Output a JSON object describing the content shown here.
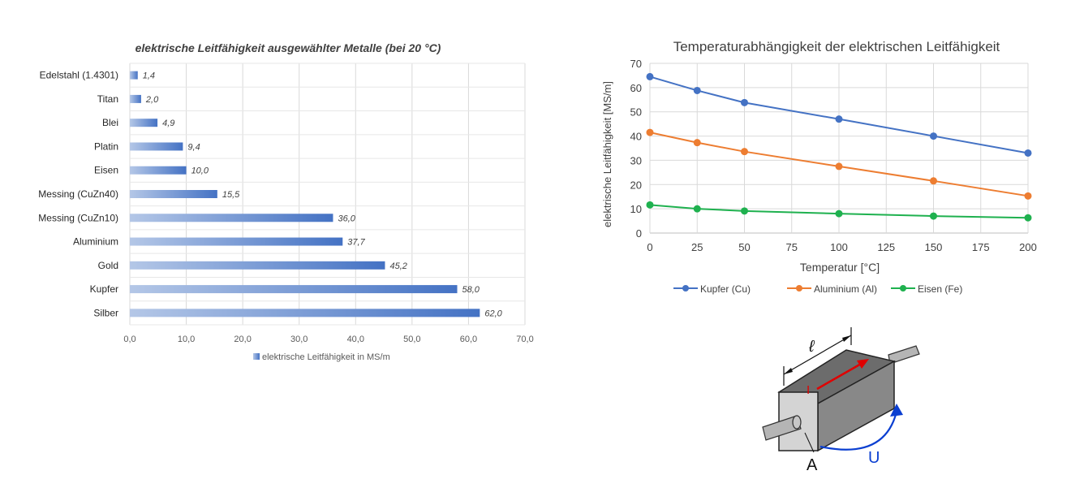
{
  "bar_chart": {
    "title": "elektrische Leitfähigkeit ausgewählter Metalle (bei 20 °C)",
    "legend_label": "elektrische Leitfähigkeit in MS/m",
    "x_ticks": [
      "0,0",
      "10,0",
      "20,0",
      "30,0",
      "40,0",
      "50,0",
      "60,0",
      "70,0"
    ]
  },
  "line_chart": {
    "title": "Temperaturabhängigkeit der elektrischen Leitfähigkeit",
    "xlabel": "Temperatur [°C]",
    "ylabel": "elektrische Leitfähigkeit [MS/m]",
    "x_ticks": [
      "0",
      "25",
      "50",
      "75",
      "100",
      "125",
      "150",
      "175",
      "200"
    ],
    "y_ticks": [
      "0",
      "10",
      "20",
      "30",
      "40",
      "50",
      "60",
      "70"
    ]
  },
  "diagram": {
    "length_label": "ℓ",
    "current_label": "I",
    "area_label": "A",
    "voltage_label": "U"
  },
  "chart_data": [
    {
      "type": "bar",
      "orientation": "horizontal",
      "title": "elektrische Leitfähigkeit ausgewählter Metalle (bei 20 °C)",
      "categories": [
        "Edelstahl (1.4301)",
        "Titan",
        "Blei",
        "Platin",
        "Eisen",
        "Messing (CuZn40)",
        "Messing (CuZn10)",
        "Aluminium",
        "Gold",
        "Kupfer",
        "Silber"
      ],
      "values": [
        1.4,
        2.0,
        4.9,
        9.4,
        10.0,
        15.5,
        36.0,
        37.7,
        45.2,
        58.0,
        62.0
      ],
      "value_labels": [
        "1,4",
        "2,0",
        "4,9",
        "9,4",
        "10,0",
        "15,5",
        "36,0",
        "37,7",
        "45,2",
        "58,0",
        "62,0"
      ],
      "xlim": [
        0,
        70
      ],
      "legend": "elektrische Leitfähigkeit in MS/m",
      "legend_position": "bottom",
      "grid": true
    },
    {
      "type": "line",
      "title": "Temperaturabhängigkeit der elektrischen Leitfähigkeit",
      "xlabel": "Temperatur [°C]",
      "ylabel": "elektrische Leitfähigkeit [MS/m]",
      "xlim": [
        0,
        200
      ],
      "ylim": [
        0,
        70
      ],
      "grid": true,
      "legend_position": "bottom",
      "series": [
        {
          "name": "Kupfer (Cu)",
          "color": "#4472C4",
          "x": [
            0,
            25,
            50,
            100,
            150,
            200
          ],
          "values": [
            64.5,
            58.8,
            53.8,
            47.0,
            40.0,
            33.0
          ]
        },
        {
          "name": "Aluminium (Al)",
          "color": "#ED7D31",
          "x": [
            0,
            25,
            50,
            100,
            150,
            200
          ],
          "values": [
            41.5,
            37.3,
            33.6,
            27.5,
            21.5,
            15.3
          ]
        },
        {
          "name": "Eisen (Fe)",
          "color": "#1FB14F",
          "x": [
            0,
            25,
            50,
            100,
            150,
            200
          ],
          "values": [
            11.6,
            10.0,
            9.1,
            8.0,
            7.0,
            6.3
          ]
        }
      ]
    }
  ]
}
